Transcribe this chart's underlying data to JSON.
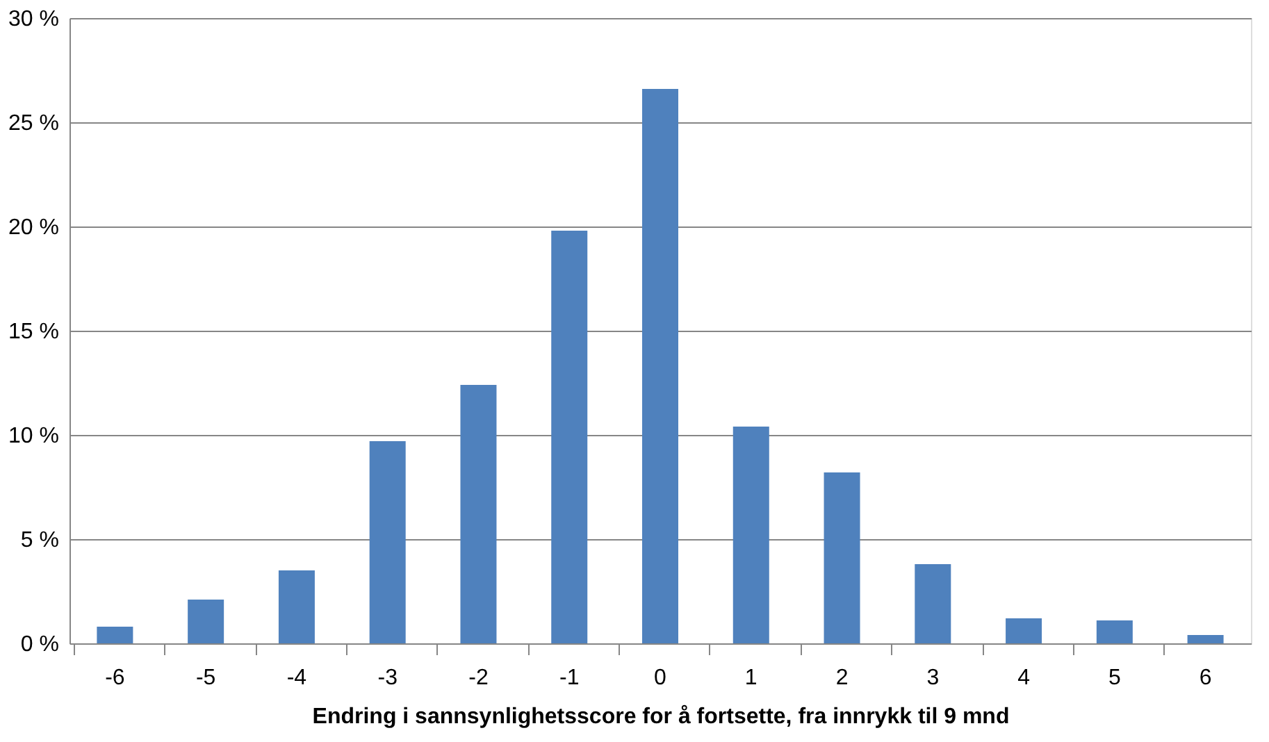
{
  "chart_data": {
    "type": "bar",
    "xlabel": "Endring i sannsynlighetsscore for å fortsette, fra innrykk til 9 mnd",
    "categories": [
      "-6",
      "-5",
      "-4",
      "-3",
      "-2",
      "-1",
      "0",
      "1",
      "2",
      "3",
      "4",
      "5",
      "6"
    ],
    "values": [
      0.8,
      2.1,
      3.5,
      9.7,
      12.4,
      19.8,
      26.6,
      10.4,
      8.2,
      3.8,
      1.2,
      1.1,
      0.4
    ],
    "color": "#4f81bd",
    "ylim": [
      0,
      30
    ],
    "yticks": [
      {
        "value": 0,
        "label": "0 %"
      },
      {
        "value": 5,
        "label": "5 %"
      },
      {
        "value": 10,
        "label": "10 %"
      },
      {
        "value": 15,
        "label": "15 %"
      },
      {
        "value": 20,
        "label": "20 %"
      },
      {
        "value": 25,
        "label": "25 %"
      },
      {
        "value": 30,
        "label": "30 %"
      }
    ],
    "grid": "y"
  }
}
